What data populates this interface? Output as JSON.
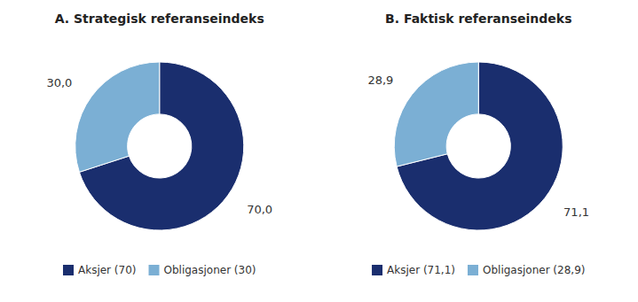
{
  "chart_data": [
    {
      "type": "donut",
      "title": "A. Strategisk referanseindeks",
      "categories": [
        "Aksjer (70)",
        "Obligasjoner (30)"
      ],
      "values": [
        70.0,
        30.0
      ],
      "value_labels": [
        "70,0",
        "30,0"
      ],
      "colors": [
        "#1a2e6e",
        "#7bafd4"
      ],
      "data_labels": true,
      "legend": "bottom"
    },
    {
      "type": "donut",
      "title": "B. Faktisk referanseindeks",
      "categories": [
        "Aksjer (71,1)",
        "Obligasjoner (28,9)"
      ],
      "values": [
        71.1,
        28.9
      ],
      "value_labels": [
        "71,1",
        "28,9"
      ],
      "colors": [
        "#1a2e6e",
        "#7bafd4"
      ],
      "data_labels": true,
      "legend": "bottom"
    }
  ]
}
